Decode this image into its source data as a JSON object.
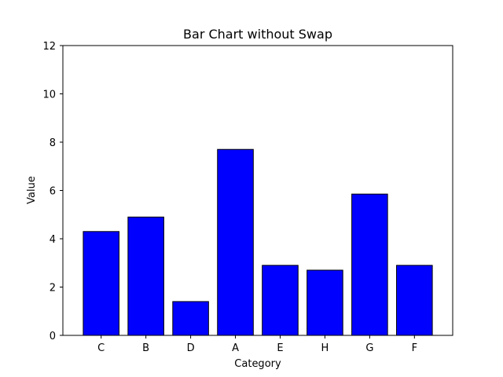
{
  "chart_data": {
    "type": "bar",
    "title": "Bar Chart without Swap",
    "xlabel": "Category",
    "ylabel": "Value",
    "categories": [
      "C",
      "B",
      "D",
      "A",
      "E",
      "H",
      "G",
      "F"
    ],
    "values": [
      4.3,
      4.9,
      1.4,
      7.7,
      2.9,
      2.7,
      5.85,
      2.9
    ],
    "ylim": [
      0,
      12
    ],
    "yticks": [
      0,
      2,
      4,
      6,
      8,
      10,
      12
    ],
    "grid": false,
    "legend": false,
    "bar_color": "#0000ff",
    "bar_edge_color": "#000000"
  }
}
